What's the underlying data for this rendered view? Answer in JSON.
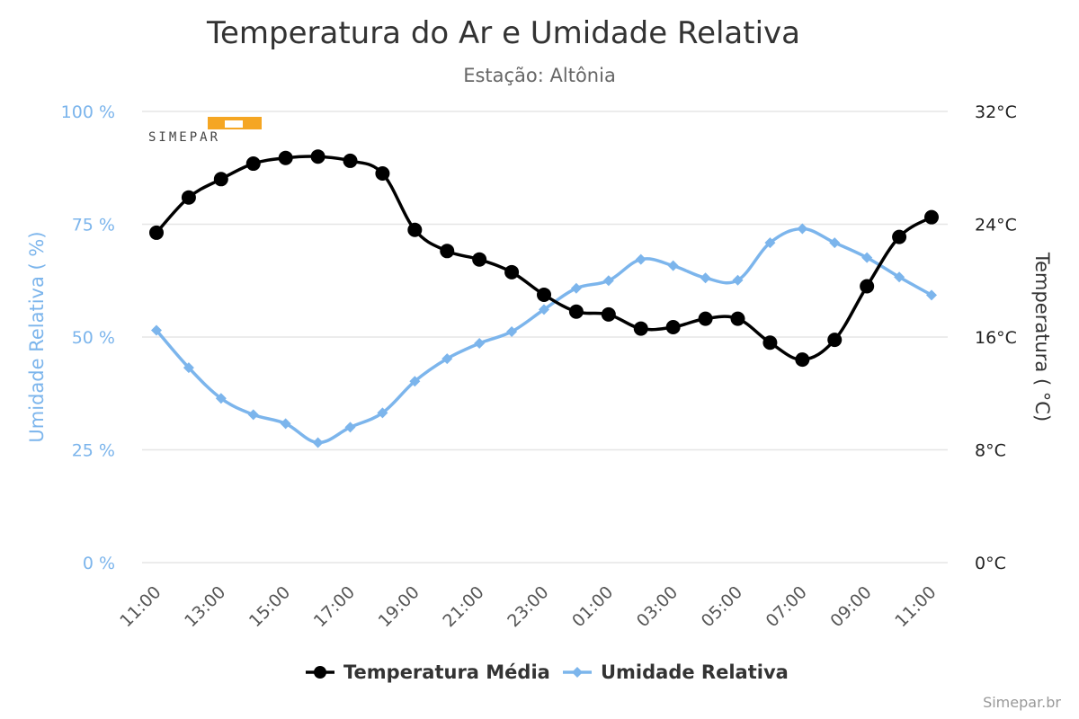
{
  "chart_data": {
    "type": "line",
    "title": "Temperatura do Ar e Umidade Relativa",
    "subtitle": "Estação: Altônia",
    "x": [
      "11:00",
      "12:00",
      "13:00",
      "14:00",
      "15:00",
      "16:00",
      "17:00",
      "18:00",
      "19:00",
      "20:00",
      "21:00",
      "22:00",
      "23:00",
      "00:00",
      "01:00",
      "02:00",
      "03:00",
      "04:00",
      "05:00",
      "06:00",
      "07:00",
      "08:00",
      "09:00",
      "10:00",
      "11:00"
    ],
    "x_tick_labels": [
      "11:00",
      "13:00",
      "15:00",
      "17:00",
      "19:00",
      "21:00",
      "23:00",
      "01:00",
      "03:00",
      "05:00",
      "07:00",
      "09:00",
      "11:00"
    ],
    "y_left": {
      "label": "Umidade Relativa ( %)",
      "range": [
        0,
        100
      ],
      "ticks": [
        "0 %",
        "25 %",
        "50 %",
        "75 %",
        "100 %"
      ],
      "color": "#7cb5ec"
    },
    "y_right": {
      "label": "Temperatura ( °C)",
      "range": [
        0,
        32
      ],
      "ticks": [
        "0°C",
        "8°C",
        "16°C",
        "24°C",
        "32°C"
      ],
      "color": "#222222"
    },
    "grid": true,
    "legend_position": "bottom-center",
    "series": [
      {
        "name": "Temperatura Média",
        "axis": "right",
        "color": "#000000",
        "marker": "circle",
        "values": [
          23.4,
          25.9,
          27.2,
          28.3,
          28.7,
          28.8,
          28.5,
          27.6,
          23.6,
          22.1,
          21.5,
          20.6,
          19.0,
          17.8,
          17.6,
          16.6,
          16.7,
          17.3,
          17.3,
          15.6,
          14.4,
          15.8,
          19.6,
          23.1,
          24.5
        ]
      },
      {
        "name": "Umidade Relativa",
        "axis": "left",
        "color": "#7cb5ec",
        "marker": "diamond",
        "values": [
          51.5,
          43.2,
          36.4,
          32.8,
          30.8,
          26.6,
          30.0,
          33.2,
          40.2,
          45.2,
          48.6,
          51.2,
          56.1,
          60.8,
          62.5,
          67.2,
          65.8,
          63.1,
          62.6,
          70.9,
          74.0,
          70.9,
          67.6,
          63.3,
          59.3
        ]
      }
    ]
  },
  "logo": {
    "text": "SIMEPAR",
    "accent": "#f5a623"
  },
  "credits": "Simepar.br"
}
